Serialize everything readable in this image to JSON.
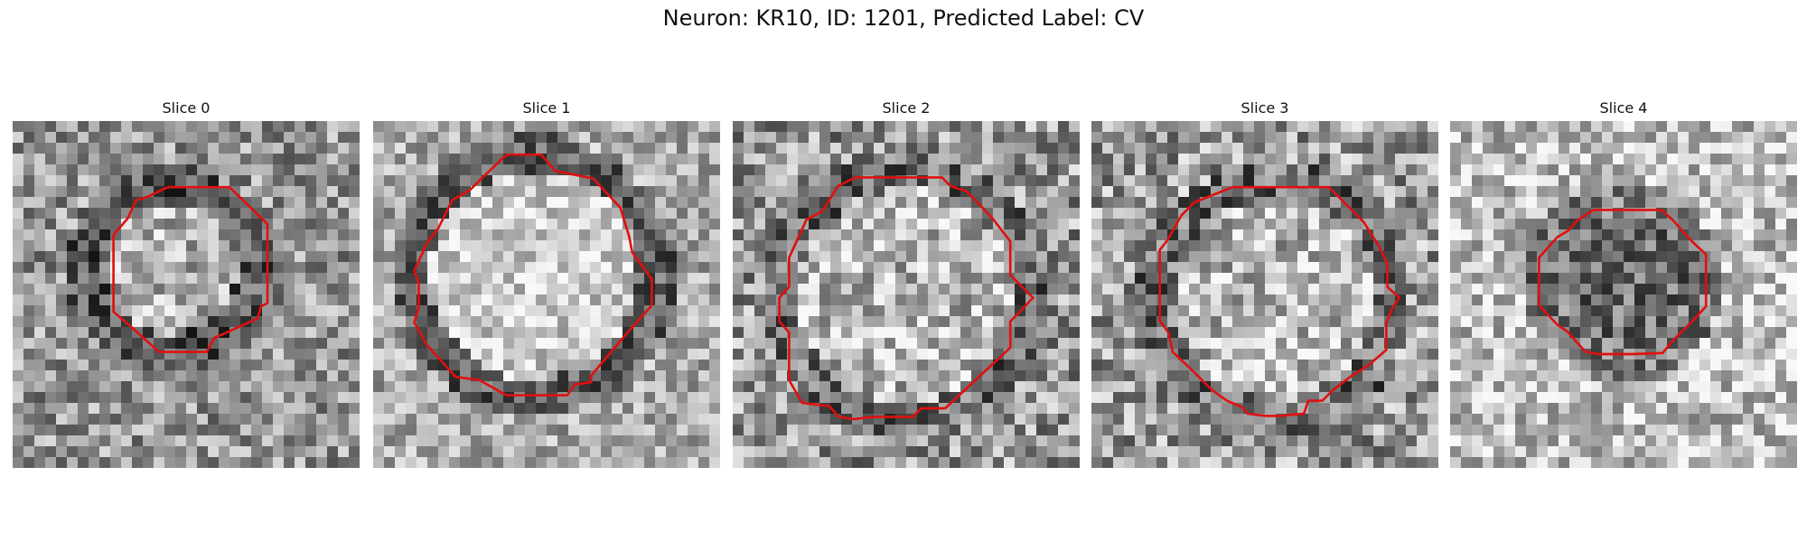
{
  "figure": {
    "title": "Neuron: KR10, ID: 1201, Predicted Label: CV"
  },
  "colors": {
    "background": "#ffffff",
    "contour": "#e01010"
  },
  "panels": [
    {
      "title": "Slice 0"
    },
    {
      "title": "Slice 1"
    },
    {
      "title": "Slice 2"
    },
    {
      "title": "Slice 3"
    },
    {
      "title": "Slice 4"
    }
  ]
}
